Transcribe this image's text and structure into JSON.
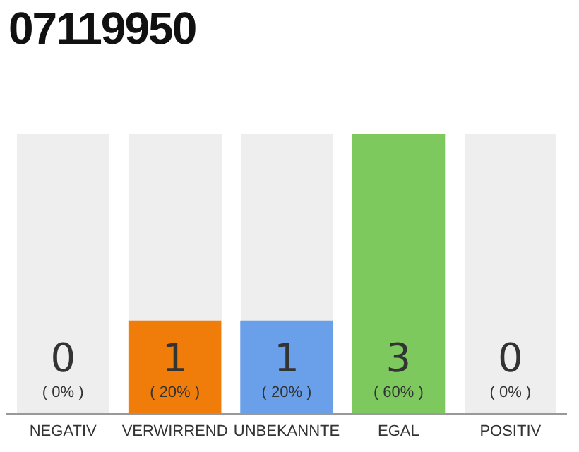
{
  "chart_data": {
    "type": "bar",
    "title": "07119950",
    "categories": [
      "NEGATIV",
      "VERWIRREND",
      "UNBEKANNTE",
      "EGAL",
      "POSITIV"
    ],
    "values": [
      0,
      20,
      20,
      60,
      0
    ],
    "colors": [
      "#f07d0a",
      "#f07d0a",
      "#6aa0ea",
      "#7dc95e",
      "#7dc95e"
    ],
    "tick_labels": "x",
    "grid": false,
    "legend": false,
    "value_labels": [
      "( 0% )",
      "( 20% )",
      "( 20% )",
      "( 60% )",
      "( 0% )"
    ],
    "annotations": [
      "0",
      "1",
      "1",
      "3",
      "0"
    ]
  }
}
